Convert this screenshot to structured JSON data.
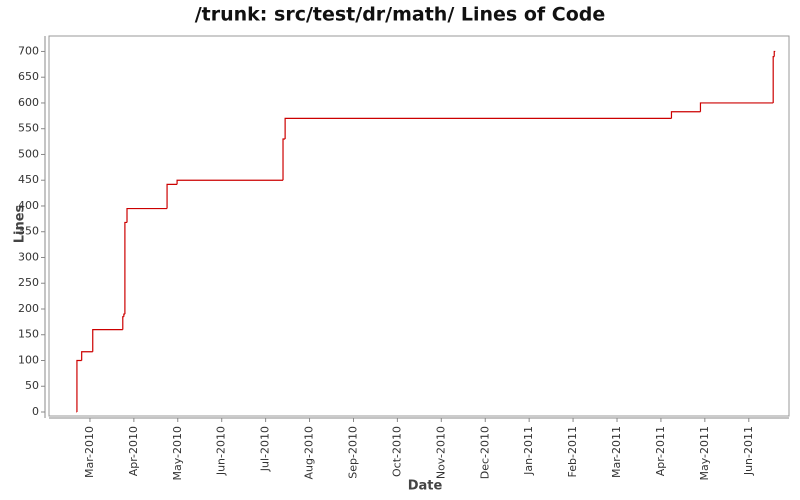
{
  "chart_data": {
    "type": "line",
    "step": "post",
    "title": "/trunk: src/test/dr/math/ Lines of Code",
    "x_label": "Date",
    "y_label": "Lines",
    "series": [
      {
        "name": "Lines",
        "color": "#cc0000",
        "x": [
          2010.141,
          2010.142,
          2010.151,
          2010.172,
          2010.229,
          2010.231,
          2010.233,
          2010.237,
          2010.313,
          2010.332,
          2010.533,
          2010.537,
          2011.27,
          2011.325,
          2011.463,
          2011.465
        ],
        "values": [
          0,
          100,
          117,
          160,
          185,
          190,
          368,
          395,
          442,
          450,
          530,
          570,
          583,
          600,
          690,
          700
        ]
      }
    ],
    "xlim": [
      2010.089,
      2011.493
    ],
    "xticks": [
      {
        "value": 2010.1667,
        "label": "Mar-2010"
      },
      {
        "value": 2010.25,
        "label": "Apr-2010"
      },
      {
        "value": 2010.3333,
        "label": "May-2010"
      },
      {
        "value": 2010.4167,
        "label": "Jun-2010"
      },
      {
        "value": 2010.5,
        "label": "Jul-2010"
      },
      {
        "value": 2010.5833,
        "label": "Aug-2010"
      },
      {
        "value": 2010.6667,
        "label": "Sep-2010"
      },
      {
        "value": 2010.75,
        "label": "Oct-2010"
      },
      {
        "value": 2010.8333,
        "label": "Nov-2010"
      },
      {
        "value": 2010.9167,
        "label": "Dec-2010"
      },
      {
        "value": 2011.0,
        "label": "Jan-2011"
      },
      {
        "value": 2011.0833,
        "label": "Feb-2011"
      },
      {
        "value": 2011.1667,
        "label": "Mar-2011"
      },
      {
        "value": 2011.25,
        "label": "Apr-2011"
      },
      {
        "value": 2011.3333,
        "label": "May-2011"
      },
      {
        "value": 2011.4167,
        "label": "Jun-2011"
      }
    ],
    "ylim": [
      0,
      730
    ],
    "yticks": [
      0,
      50,
      100,
      150,
      200,
      250,
      300,
      350,
      400,
      450,
      500,
      550,
      600,
      650,
      700
    ],
    "grid": false
  }
}
